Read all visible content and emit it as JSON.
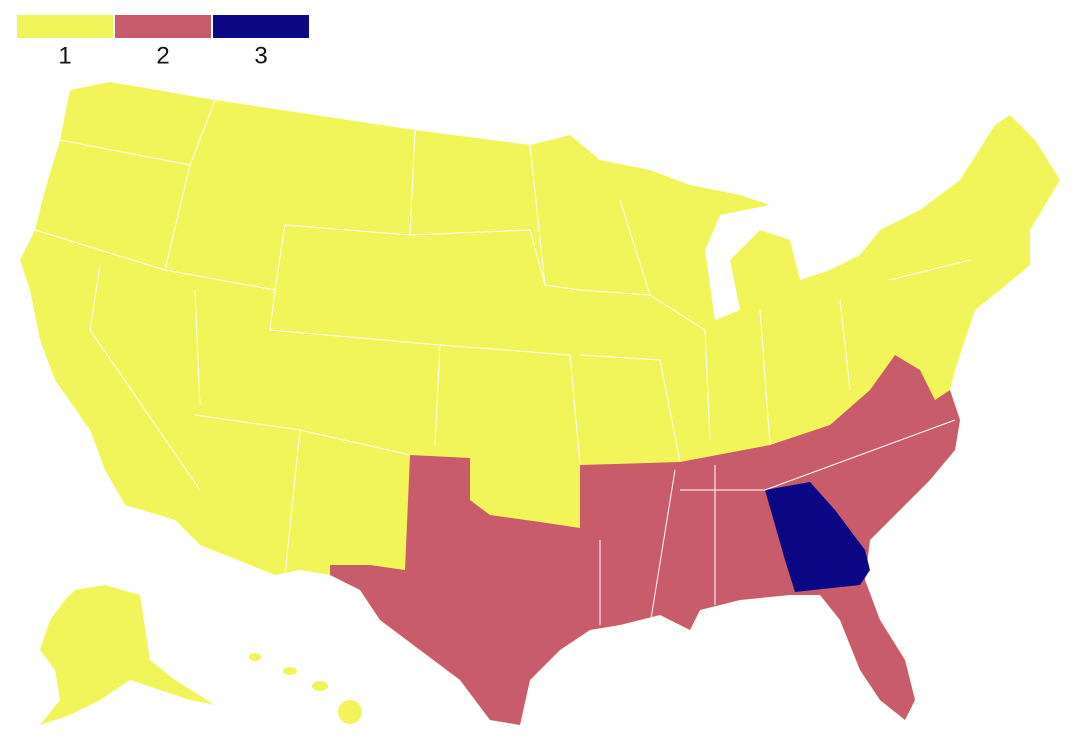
{
  "legend": {
    "items": [
      {
        "label": "1",
        "color": "#f2f55a"
      },
      {
        "label": "2",
        "color": "#c95c6a"
      },
      {
        "label": "3",
        "color": "#0c0784"
      }
    ]
  }
}
